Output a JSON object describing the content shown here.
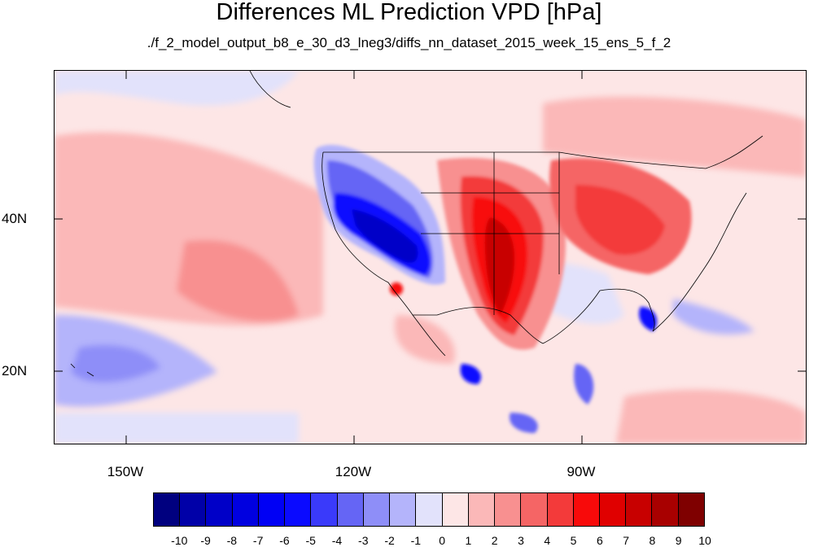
{
  "title": "Differences ML Prediction VPD [hPa]",
  "subtitle": "./f_2_model_output_b8_e_30_d3_lneg3/diffs_nn_dataset_2015_week_15_ens_5_f_2",
  "lat_labels": [
    "40N",
    "20N"
  ],
  "lon_labels": [
    "150W",
    "120W",
    "90W"
  ],
  "colorbar": {
    "labels": [
      "-10",
      "-9",
      "-8",
      "-7",
      "-6",
      "-5",
      "-4",
      "-3",
      "-2",
      "-1",
      "0",
      "1",
      "2",
      "3",
      "4",
      "5",
      "6",
      "7",
      "8",
      "9",
      "10"
    ],
    "colors": [
      "#00007f",
      "#0000a8",
      "#0000c8",
      "#0000e0",
      "#0000f5",
      "#0a0aff",
      "#3a3afa",
      "#6565f5",
      "#8e8ef8",
      "#b4b4fb",
      "#e2e2fb",
      "#fde6e6",
      "#fbb8b8",
      "#f89090",
      "#f56565",
      "#f33a3a",
      "#f80a0a",
      "#e00000",
      "#c80000",
      "#a80000",
      "#7f0000"
    ]
  },
  "map": {
    "background_color": "#fde6e6",
    "region": "North America and eastern Pacific, approx 160W-60W, 10N-60N",
    "features": [
      "strong negative differences over the western United States and California coast",
      "strong positive differences over the Great Plains and Texas",
      "moderate positive differences over the eastern United States",
      "negative differences near Hawaii and along the Gulf/Florida coast"
    ]
  }
}
